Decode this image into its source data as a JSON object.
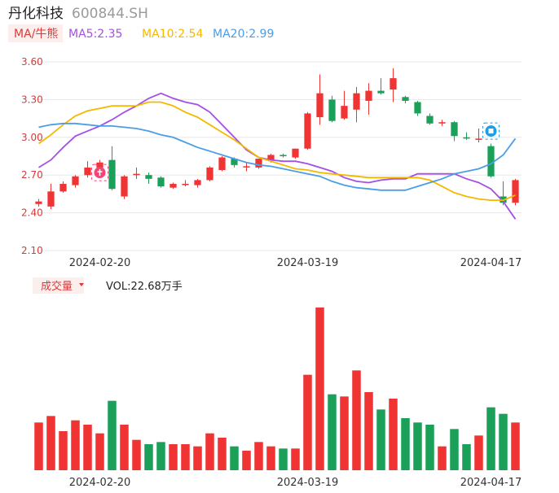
{
  "header": {
    "name": "丹化科技",
    "code": "600844.SH"
  },
  "ma_legend": {
    "tag": "MA/牛熊",
    "items": [
      {
        "label": "MA5:2.35",
        "color": "#a64ee6"
      },
      {
        "label": "MA10:2.54",
        "color": "#f5b800"
      },
      {
        "label": "MA20:2.99",
        "color": "#4a9ee8"
      }
    ]
  },
  "volume_legend": {
    "tag": "成交量",
    "value": "VOL:22.68万手"
  },
  "colors": {
    "up": "#f03434",
    "down": "#1aa058",
    "grid": "#e8e8e8",
    "axis_text": "#d93a3a"
  },
  "icons": {
    "bull": "bull-marker-icon",
    "bear": "bear-marker-icon"
  },
  "chart_data": {
    "type": "candlestick",
    "y_ticks": [
      "3.60",
      "3.30",
      "3.00",
      "2.70",
      "2.40",
      "2.10"
    ],
    "ylim": [
      2.1,
      3.6
    ],
    "x_tick_labels": [
      {
        "label": "2024-02-20",
        "index": 5
      },
      {
        "label": "2024-03-19",
        "index": 22
      },
      {
        "label": "2024-04-17",
        "index": 37
      }
    ],
    "candles": [
      {
        "o": 2.47,
        "c": 2.49,
        "h": 2.51,
        "l": 2.45
      },
      {
        "o": 2.45,
        "c": 2.57,
        "h": 2.63,
        "l": 2.43
      },
      {
        "o": 2.57,
        "c": 2.63,
        "h": 2.65,
        "l": 2.56
      },
      {
        "o": 2.62,
        "c": 2.69,
        "h": 2.7,
        "l": 2.6
      },
      {
        "o": 2.7,
        "c": 2.76,
        "h": 2.81,
        "l": 2.68
      },
      {
        "o": 2.76,
        "c": 2.8,
        "h": 2.82,
        "l": 2.74
      },
      {
        "o": 2.82,
        "c": 2.59,
        "h": 2.93,
        "l": 2.58
      },
      {
        "o": 2.53,
        "c": 2.69,
        "h": 2.7,
        "l": 2.51
      },
      {
        "o": 2.7,
        "c": 2.71,
        "h": 2.76,
        "l": 2.67
      },
      {
        "o": 2.7,
        "c": 2.67,
        "h": 2.72,
        "l": 2.63
      },
      {
        "o": 2.68,
        "c": 2.61,
        "h": 2.69,
        "l": 2.6
      },
      {
        "o": 2.6,
        "c": 2.63,
        "h": 2.64,
        "l": 2.59
      },
      {
        "o": 2.62,
        "c": 2.63,
        "h": 2.66,
        "l": 2.61
      },
      {
        "o": 2.62,
        "c": 2.66,
        "h": 2.67,
        "l": 2.6
      },
      {
        "o": 2.66,
        "c": 2.76,
        "h": 2.77,
        "l": 2.65
      },
      {
        "o": 2.74,
        "c": 2.84,
        "h": 2.85,
        "l": 2.73
      },
      {
        "o": 2.83,
        "c": 2.78,
        "h": 2.84,
        "l": 2.76
      },
      {
        "o": 2.77,
        "c": 2.77,
        "h": 2.8,
        "l": 2.73
      },
      {
        "o": 2.76,
        "c": 2.83,
        "h": 2.83,
        "l": 2.75
      },
      {
        "o": 2.82,
        "c": 2.86,
        "h": 2.87,
        "l": 2.8
      },
      {
        "o": 2.86,
        "c": 2.85,
        "h": 2.87,
        "l": 2.84
      },
      {
        "o": 2.84,
        "c": 2.91,
        "h": 2.91,
        "l": 2.83
      },
      {
        "o": 2.91,
        "c": 3.19,
        "h": 3.2,
        "l": 2.9
      },
      {
        "o": 3.16,
        "c": 3.35,
        "h": 3.5,
        "l": 3.1
      },
      {
        "o": 3.3,
        "c": 3.13,
        "h": 3.33,
        "l": 3.12
      },
      {
        "o": 3.15,
        "c": 3.25,
        "h": 3.37,
        "l": 3.14
      },
      {
        "o": 3.22,
        "c": 3.35,
        "h": 3.4,
        "l": 3.12
      },
      {
        "o": 3.29,
        "c": 3.37,
        "h": 3.43,
        "l": 3.18
      },
      {
        "o": 3.37,
        "c": 3.35,
        "h": 3.47,
        "l": 3.34
      },
      {
        "o": 3.38,
        "c": 3.47,
        "h": 3.55,
        "l": 3.28
      },
      {
        "o": 3.32,
        "c": 3.29,
        "h": 3.33,
        "l": 3.27
      },
      {
        "o": 3.28,
        "c": 3.19,
        "h": 3.29,
        "l": 3.17
      },
      {
        "o": 3.17,
        "c": 3.11,
        "h": 3.19,
        "l": 3.1
      },
      {
        "o": 3.11,
        "c": 3.12,
        "h": 3.14,
        "l": 3.09
      },
      {
        "o": 3.12,
        "c": 3.01,
        "h": 3.13,
        "l": 2.97
      },
      {
        "o": 3.0,
        "c": 2.99,
        "h": 3.04,
        "l": 2.98
      },
      {
        "o": 2.98,
        "c": 2.99,
        "h": 3.07,
        "l": 2.96
      },
      {
        "o": 2.93,
        "c": 2.69,
        "h": 2.95,
        "l": 2.68
      },
      {
        "o": 2.53,
        "c": 2.48,
        "h": 2.65,
        "l": 2.46
      },
      {
        "o": 2.48,
        "c": 2.66,
        "h": 2.67,
        "l": 2.46
      }
    ],
    "series": [
      {
        "name": "MA5",
        "color": "#a64ee6",
        "values": [
          2.76,
          2.82,
          2.92,
          3.01,
          3.05,
          3.09,
          3.14,
          3.2,
          3.25,
          3.31,
          3.35,
          3.31,
          3.28,
          3.26,
          3.2,
          3.1,
          3.0,
          2.9,
          2.84,
          2.82,
          2.81,
          2.81,
          2.79,
          2.76,
          2.73,
          2.68,
          2.65,
          2.64,
          2.66,
          2.67,
          2.67,
          2.71,
          2.71,
          2.71,
          2.71,
          2.67,
          2.64,
          2.59,
          2.49,
          2.35
        ]
      },
      {
        "name": "MA10",
        "color": "#f5b800",
        "values": [
          2.95,
          3.02,
          3.1,
          3.17,
          3.21,
          3.23,
          3.25,
          3.25,
          3.25,
          3.28,
          3.28,
          3.25,
          3.2,
          3.16,
          3.1,
          3.04,
          2.98,
          2.91,
          2.84,
          2.81,
          2.78,
          2.75,
          2.74,
          2.72,
          2.71,
          2.7,
          2.69,
          2.68,
          2.68,
          2.68,
          2.68,
          2.68,
          2.66,
          2.61,
          2.56,
          2.53,
          2.51,
          2.5,
          2.5,
          2.54
        ]
      },
      {
        "name": "MA20",
        "color": "#4a9ee8",
        "values": [
          3.08,
          3.1,
          3.11,
          3.11,
          3.1,
          3.09,
          3.09,
          3.08,
          3.07,
          3.05,
          3.02,
          3.0,
          2.96,
          2.92,
          2.89,
          2.86,
          2.83,
          2.8,
          2.78,
          2.77,
          2.75,
          2.73,
          2.71,
          2.69,
          2.65,
          2.62,
          2.6,
          2.59,
          2.58,
          2.58,
          2.58,
          2.61,
          2.64,
          2.67,
          2.71,
          2.73,
          2.75,
          2.79,
          2.86,
          2.99
        ]
      }
    ],
    "volume": [
      22,
      25,
      18,
      23,
      21,
      17,
      32,
      21,
      14,
      12,
      13,
      12,
      12,
      11,
      17,
      15,
      11,
      9,
      13,
      11,
      10,
      10,
      44,
      75,
      35,
      34,
      46,
      36,
      28,
      33,
      24,
      22,
      21,
      11,
      19,
      12,
      16,
      29,
      26,
      22
    ],
    "signals": [
      {
        "type": "bull",
        "index": 5,
        "price": 2.72
      },
      {
        "type": "bear",
        "index": 37,
        "price": 3.05
      }
    ]
  }
}
